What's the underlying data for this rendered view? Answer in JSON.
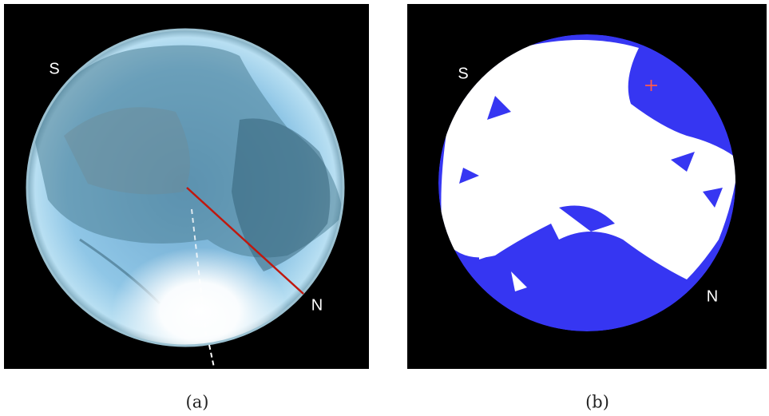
{
  "panels": [
    {
      "caption": "(a)",
      "labels": {
        "south": "S",
        "north": "N"
      }
    },
    {
      "caption": "(b)",
      "labels": {
        "south": "S",
        "north": "N"
      }
    }
  ]
}
